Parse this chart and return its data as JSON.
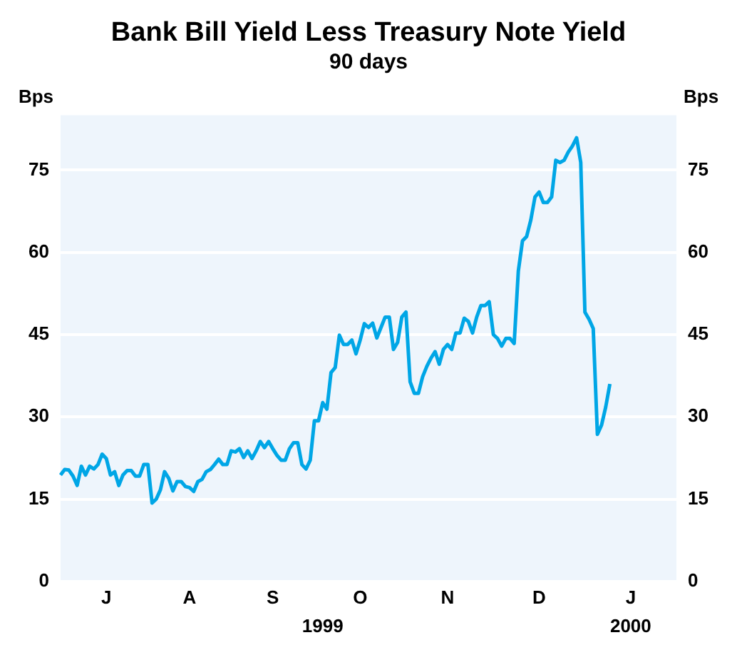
{
  "chart_data": {
    "type": "line",
    "title": "Bank Bill Yield Less Treasury Note Yield",
    "subtitle": "90 days",
    "ylabel": "Bps",
    "y2label": "Bps",
    "categories": [
      null,
      null,
      null,
      null,
      null,
      null,
      null,
      null,
      null,
      null,
      null,
      "J",
      null,
      null,
      null,
      null,
      null,
      null,
      null,
      null,
      null,
      null,
      null,
      null,
      null,
      null,
      null,
      null,
      null,
      null,
      null,
      "A",
      null,
      null,
      null,
      null,
      null,
      null,
      null,
      null,
      null,
      null,
      null,
      null,
      null,
      null,
      null,
      null,
      null,
      null,
      null,
      "S",
      null,
      null,
      null,
      null,
      null,
      null,
      null,
      null,
      null,
      null,
      null,
      null,
      null,
      null,
      null,
      null,
      null,
      null,
      null,
      null,
      "O",
      null,
      null,
      null,
      null,
      null,
      null,
      null,
      null,
      null,
      null,
      null,
      null,
      null,
      null,
      null,
      null,
      null,
      null,
      null,
      null,
      "N",
      null,
      null,
      null,
      null,
      null,
      null,
      null,
      null,
      null,
      null,
      null,
      null,
      null,
      null,
      null,
      null,
      null,
      null,
      null,
      null,
      null,
      "D",
      null,
      null,
      null,
      null,
      null,
      null,
      null,
      null,
      null,
      null,
      null,
      null,
      null,
      null,
      null,
      null,
      null,
      null,
      null,
      null,
      null,
      "J",
      null,
      null,
      null,
      null,
      null,
      null,
      null,
      null,
      null,
      null,
      null
    ],
    "series": [
      {
        "color": "#00a6e6",
        "values": [
          19.4,
          20.4,
          20.3,
          19.2,
          17.5,
          21.0,
          19.4,
          21.0,
          20.5,
          21.3,
          23.2,
          22.4,
          19.4,
          20.0,
          17.5,
          19.4,
          20.2,
          20.2,
          19.2,
          19.2,
          21.3,
          21.3,
          14.3,
          15.0,
          16.7,
          20.0,
          18.8,
          16.5,
          18.2,
          18.2,
          17.3,
          17.1,
          16.4,
          18.2,
          18.6,
          20.0,
          20.4,
          21.3,
          22.3,
          21.3,
          21.3,
          23.8,
          23.6,
          24.2,
          22.6,
          23.8,
          22.4,
          23.8,
          25.5,
          24.4,
          25.5,
          24.2,
          23.0,
          22.1,
          22.1,
          24.2,
          25.3,
          25.3,
          21.3,
          20.5,
          22.1,
          29.3,
          29.3,
          32.6,
          31.4,
          38.1,
          39.0,
          44.9,
          43.2,
          43.2,
          44.0,
          41.5,
          44.0,
          47.0,
          46.3,
          47.1,
          44.4,
          46.3,
          48.2,
          48.2,
          42.3,
          43.6,
          48.2,
          49.1,
          36.4,
          34.3,
          34.3,
          37.3,
          39.2,
          40.7,
          41.9,
          39.6,
          42.3,
          43.2,
          42.3,
          45.3,
          45.3,
          48.0,
          47.4,
          45.3,
          48.2,
          50.3,
          50.3,
          51.0,
          45.0,
          44.3,
          42.9,
          44.3,
          44.3,
          43.4,
          56.6,
          62.1,
          62.9,
          65.9,
          70.1,
          71.0,
          69.1,
          69.1,
          70.1,
          76.8,
          76.4,
          76.8,
          78.3,
          79.4,
          80.9,
          76.4,
          49.1,
          47.8,
          46.1,
          26.8,
          28.5,
          31.8,
          36.0,
          null,
          null,
          null,
          null,
          null,
          null,
          null,
          null,
          null,
          null,
          null,
          null,
          null,
          null,
          null,
          null
        ]
      }
    ],
    "ylim": [
      0,
      85
    ],
    "yticks": [
      0,
      15,
      30,
      45,
      60,
      75
    ],
    "y2lim": [
      0,
      85
    ],
    "y2ticks": [
      0,
      15,
      30,
      45,
      60,
      75
    ],
    "annotations": [
      "1999",
      "2000"
    ],
    "grid": "y",
    "legend": false,
    "marker": "none",
    "line_style": "solid"
  }
}
